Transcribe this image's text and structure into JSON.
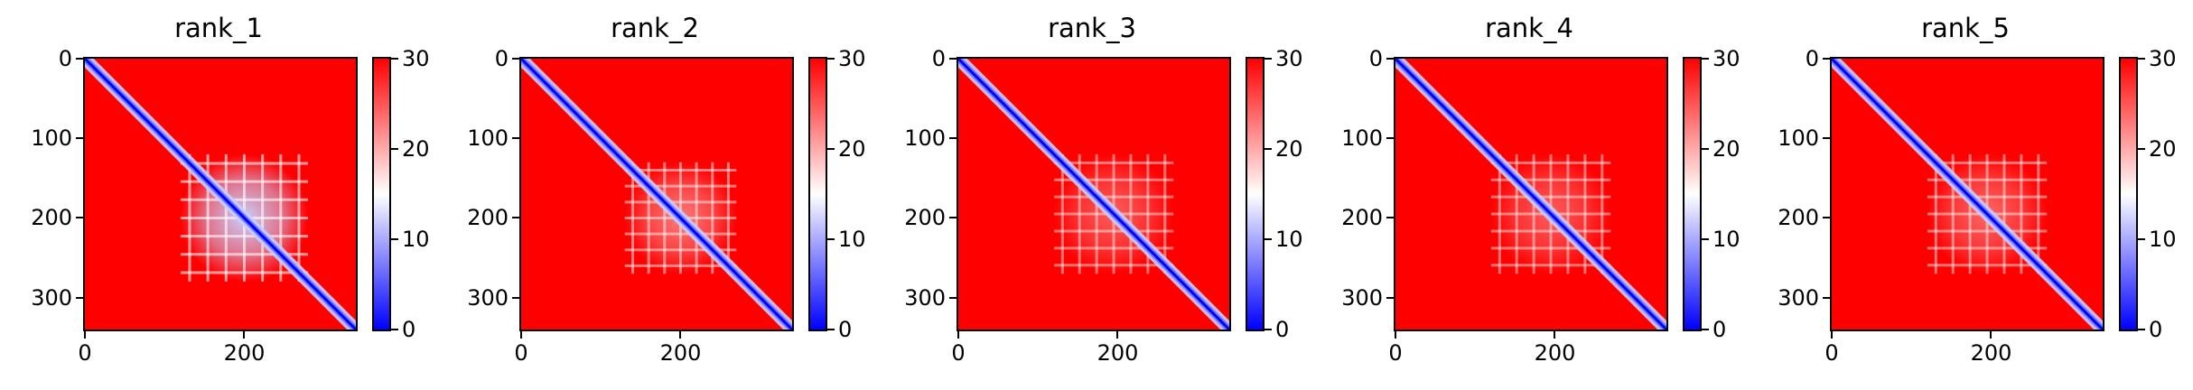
{
  "chart_data": [
    {
      "type": "heatmap",
      "title": "rank_1",
      "xlabel": "",
      "ylabel": "",
      "x_range": [
        0,
        340
      ],
      "y_range": [
        0,
        340
      ],
      "x_ticks": [
        0,
        200
      ],
      "y_ticks": [
        0,
        100,
        200,
        300
      ],
      "colorbar": {
        "range": [
          0,
          30
        ],
        "ticks": [
          0,
          10,
          20,
          30
        ],
        "colormap": [
          "#0000ff",
          "#ffffff",
          "#ff0000"
        ]
      },
      "diagonal_low_values": true,
      "low_distance_block": {
        "start": 120,
        "end": 280,
        "intensity": 1.0
      }
    },
    {
      "type": "heatmap",
      "title": "rank_2",
      "xlabel": "",
      "ylabel": "",
      "x_range": [
        0,
        340
      ],
      "y_range": [
        0,
        340
      ],
      "x_ticks": [
        0,
        200
      ],
      "y_ticks": [
        0,
        100,
        200,
        300
      ],
      "colorbar": {
        "range": [
          0,
          30
        ],
        "ticks": [
          0,
          10,
          20,
          30
        ],
        "colormap": [
          "#0000ff",
          "#ffffff",
          "#ff0000"
        ]
      },
      "diagonal_low_values": true,
      "low_distance_block": {
        "start": 130,
        "end": 270,
        "intensity": 0.55
      }
    },
    {
      "type": "heatmap",
      "title": "rank_3",
      "xlabel": "",
      "ylabel": "",
      "x_range": [
        0,
        340
      ],
      "y_range": [
        0,
        340
      ],
      "x_ticks": [
        0,
        200
      ],
      "y_ticks": [
        0,
        100,
        200,
        300
      ],
      "colorbar": {
        "range": [
          0,
          30
        ],
        "ticks": [
          0,
          10,
          20,
          30
        ],
        "colormap": [
          "#0000ff",
          "#ffffff",
          "#ff0000"
        ]
      },
      "diagonal_low_values": true,
      "low_distance_block": {
        "start": 120,
        "end": 270,
        "intensity": 0.4
      }
    },
    {
      "type": "heatmap",
      "title": "rank_4",
      "xlabel": "",
      "ylabel": "",
      "x_range": [
        0,
        340
      ],
      "y_range": [
        0,
        340
      ],
      "x_ticks": [
        0,
        200
      ],
      "y_ticks": [
        0,
        100,
        200,
        300
      ],
      "colorbar": {
        "range": [
          0,
          30
        ],
        "ticks": [
          0,
          10,
          20,
          30
        ],
        "colormap": [
          "#0000ff",
          "#ffffff",
          "#ff0000"
        ]
      },
      "diagonal_low_values": true,
      "low_distance_block": {
        "start": 120,
        "end": 270,
        "intensity": 0.4
      }
    },
    {
      "type": "heatmap",
      "title": "rank_5",
      "xlabel": "",
      "ylabel": "",
      "x_range": [
        0,
        340
      ],
      "y_range": [
        0,
        340
      ],
      "x_ticks": [
        0,
        200
      ],
      "y_ticks": [
        0,
        100,
        200,
        300
      ],
      "colorbar": {
        "range": [
          0,
          30
        ],
        "ticks": [
          0,
          10,
          20,
          30
        ],
        "colormap": [
          "#0000ff",
          "#ffffff",
          "#ff0000"
        ]
      },
      "diagonal_low_values": true,
      "low_distance_block": {
        "start": 120,
        "end": 270,
        "intensity": 0.45
      }
    }
  ]
}
